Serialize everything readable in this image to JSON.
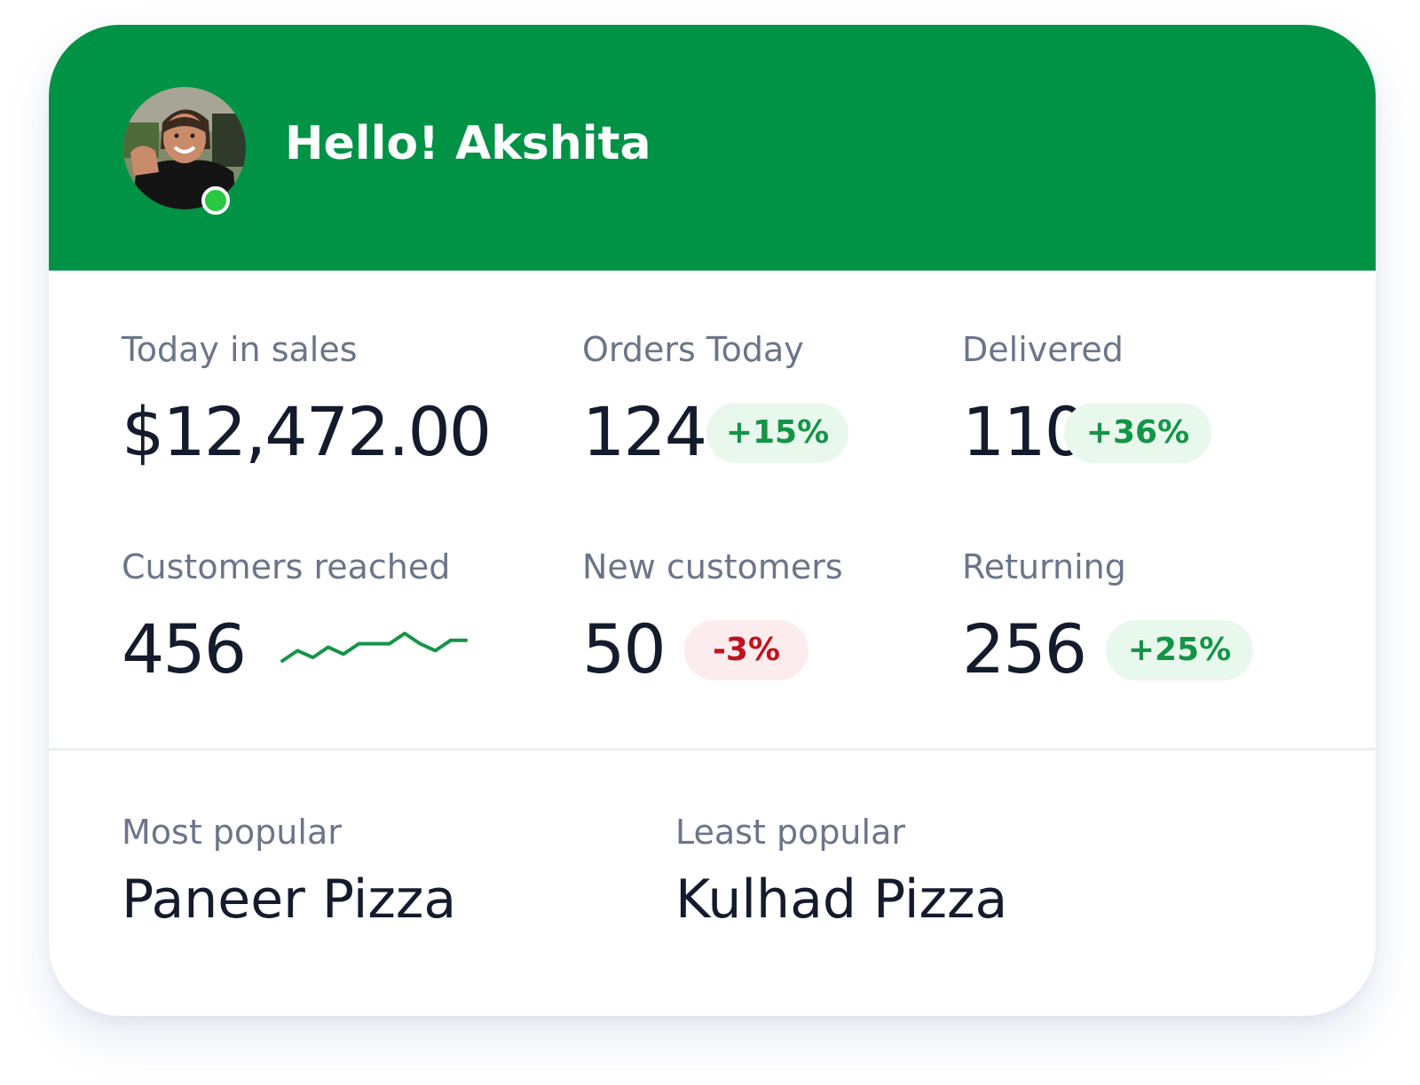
{
  "header": {
    "greeting": "Hello! Akshita",
    "online": true,
    "background_color": "#009245"
  },
  "stats": {
    "sales": {
      "label": "Today in sales",
      "value": "$12,472.00"
    },
    "orders": {
      "label": "Orders Today",
      "value": "124",
      "change": "+15%",
      "trend": "up"
    },
    "delivered": {
      "label": "Delivered",
      "value": "110",
      "change": "+36%",
      "trend": "up"
    },
    "customers": {
      "label": "Customers reached",
      "value": "456",
      "sparkline": [
        2,
        5,
        3,
        6,
        4,
        7,
        7,
        7,
        10,
        7,
        5,
        8,
        8
      ]
    },
    "new_customers": {
      "label": "New customers",
      "value": "50",
      "change": "-3%",
      "trend": "down"
    },
    "returning": {
      "label": "Returning",
      "value": "256",
      "change": "+25%",
      "trend": "up"
    }
  },
  "popular": {
    "most_label": "Most popular",
    "most_value": "Paneer Pizza",
    "least_label": "Least popular",
    "least_value": "Kulhad Pizza"
  },
  "colors": {
    "brand_green": "#009245",
    "positive_text": "#149447",
    "positive_bg": "#e9f8ed",
    "negative_text": "#c0121f",
    "negative_bg": "#fdecee",
    "sparkline": "#149447",
    "status_online": "#28c840"
  }
}
